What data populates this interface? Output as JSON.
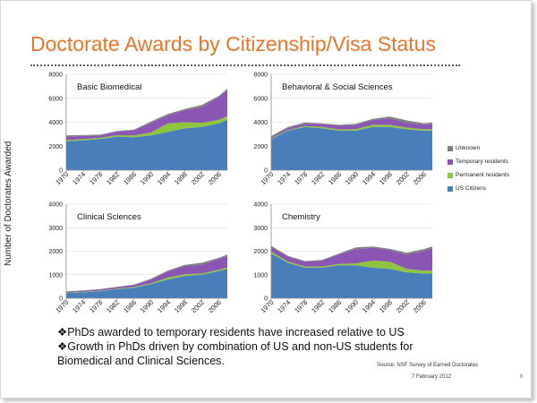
{
  "slide": {
    "title": "Doctorate Awards by Citizenship/Visa Status",
    "ylabel": "Number of Doctorates Awarded",
    "bullets": [
      "❖PhDs awarded to temporary residents have increased relative to US",
      "❖Growth in PhDs driven by combination of US and non-US students for",
      "Biomedical and Clinical Sciences."
    ],
    "source": "Source: NSF Survey of Earned Doctorates",
    "date": "7 February 2012",
    "page": "6"
  },
  "colors": {
    "us": "#4a7ebb",
    "permanent": "#8fc43e",
    "temporary": "#8b56b3",
    "unknown": "#808080"
  },
  "chart_data": [
    {
      "type": "area",
      "stacked": true,
      "title": "Basic Biomedical",
      "x": [
        1970,
        1974,
        1978,
        1982,
        1986,
        1990,
        1994,
        1998,
        2002,
        2006,
        2008
      ],
      "xticks": [
        "1970",
        "1974",
        "1978",
        "1982",
        "1986",
        "1990",
        "1994",
        "1998",
        "2002",
        "2006"
      ],
      "ylim": [
        0,
        8000
      ],
      "yticks": [
        "0",
        "2000",
        "4000",
        "6000",
        "8000"
      ],
      "series": [
        {
          "name": "US Citizens",
          "values": [
            2400,
            2500,
            2600,
            2800,
            2750,
            2900,
            3200,
            3500,
            3600,
            3900,
            4200
          ]
        },
        {
          "name": "Permanent residents",
          "values": [
            100,
            100,
            100,
            120,
            150,
            250,
            700,
            500,
            350,
            300,
            300
          ]
        },
        {
          "name": "Temporary residents",
          "values": [
            300,
            250,
            200,
            300,
            450,
            750,
            700,
            1000,
            1300,
            1900,
            2150
          ]
        },
        {
          "name": "Unknown",
          "values": [
            100,
            80,
            60,
            50,
            40,
            150,
            100,
            100,
            200,
            100,
            150
          ]
        }
      ]
    },
    {
      "type": "area",
      "stacked": true,
      "title": "Behavioral & Social Sciences",
      "x": [
        1970,
        1974,
        1978,
        1982,
        1986,
        1990,
        1994,
        1998,
        2002,
        2006,
        2008
      ],
      "xticks": [
        "1970",
        "1974",
        "1978",
        "1982",
        "1986",
        "1990",
        "1994",
        "1998",
        "2002",
        "2006"
      ],
      "ylim": [
        0,
        8000
      ],
      "yticks": [
        "0",
        "2000",
        "4000",
        "6000",
        "8000"
      ],
      "series": [
        {
          "name": "US Citizens",
          "values": [
            2600,
            3300,
            3600,
            3500,
            3300,
            3300,
            3600,
            3600,
            3400,
            3300,
            3300
          ]
        },
        {
          "name": "Permanent residents",
          "values": [
            50,
            60,
            80,
            100,
            100,
            120,
            180,
            180,
            150,
            120,
            120
          ]
        },
        {
          "name": "Temporary residents",
          "values": [
            100,
            150,
            200,
            250,
            300,
            350,
            400,
            550,
            400,
            400,
            400
          ]
        },
        {
          "name": "Unknown",
          "values": [
            100,
            100,
            100,
            50,
            80,
            100,
            100,
            150,
            200,
            100,
            150
          ]
        }
      ]
    },
    {
      "type": "area",
      "stacked": true,
      "title": "Clinical Sciences",
      "x": [
        1970,
        1974,
        1978,
        1982,
        1986,
        1990,
        1994,
        1998,
        2002,
        2006,
        2008
      ],
      "xticks": [
        "1970",
        "1974",
        "1978",
        "1982",
        "1986",
        "1990",
        "1994",
        "1998",
        "2002",
        "2006"
      ],
      "ylim": [
        0,
        4000
      ],
      "yticks": [
        "0",
        "1000",
        "2000",
        "3000",
        "4000"
      ],
      "series": [
        {
          "name": "US Citizens",
          "values": [
            220,
            250,
            300,
            380,
            450,
            600,
            800,
            950,
            1000,
            1150,
            1250
          ]
        },
        {
          "name": "Permanent residents",
          "values": [
            20,
            20,
            20,
            25,
            30,
            40,
            80,
            70,
            50,
            60,
            60
          ]
        },
        {
          "name": "Temporary residents",
          "values": [
            30,
            40,
            50,
            60,
            80,
            150,
            250,
            350,
            380,
            450,
            480
          ]
        },
        {
          "name": "Unknown",
          "values": [
            20,
            20,
            20,
            20,
            20,
            40,
            50,
            50,
            80,
            60,
            70
          ]
        }
      ]
    },
    {
      "type": "area",
      "stacked": true,
      "title": "Chemistry",
      "x": [
        1970,
        1974,
        1978,
        1982,
        1986,
        1990,
        1994,
        1998,
        2002,
        2006,
        2008
      ],
      "xticks": [
        "1970",
        "1974",
        "1978",
        "1982",
        "1986",
        "1990",
        "1994",
        "1998",
        "2002",
        "2006"
      ],
      "ylim": [
        0,
        4000
      ],
      "yticks": [
        "0",
        "1000",
        "2000",
        "3000",
        "4000"
      ],
      "series": [
        {
          "name": "US Citizens",
          "values": [
            1900,
            1500,
            1300,
            1300,
            1400,
            1400,
            1300,
            1250,
            1100,
            1050,
            1050
          ]
        },
        {
          "name": "Permanent residents",
          "values": [
            80,
            60,
            50,
            50,
            60,
            80,
            300,
            300,
            150,
            120,
            120
          ]
        },
        {
          "name": "Temporary residents",
          "values": [
            200,
            200,
            200,
            250,
            400,
            600,
            550,
            500,
            600,
            850,
            950
          ]
        },
        {
          "name": "Unknown",
          "values": [
            50,
            40,
            30,
            30,
            40,
            80,
            50,
            50,
            80,
            70,
            80
          ]
        }
      ]
    }
  ]
}
